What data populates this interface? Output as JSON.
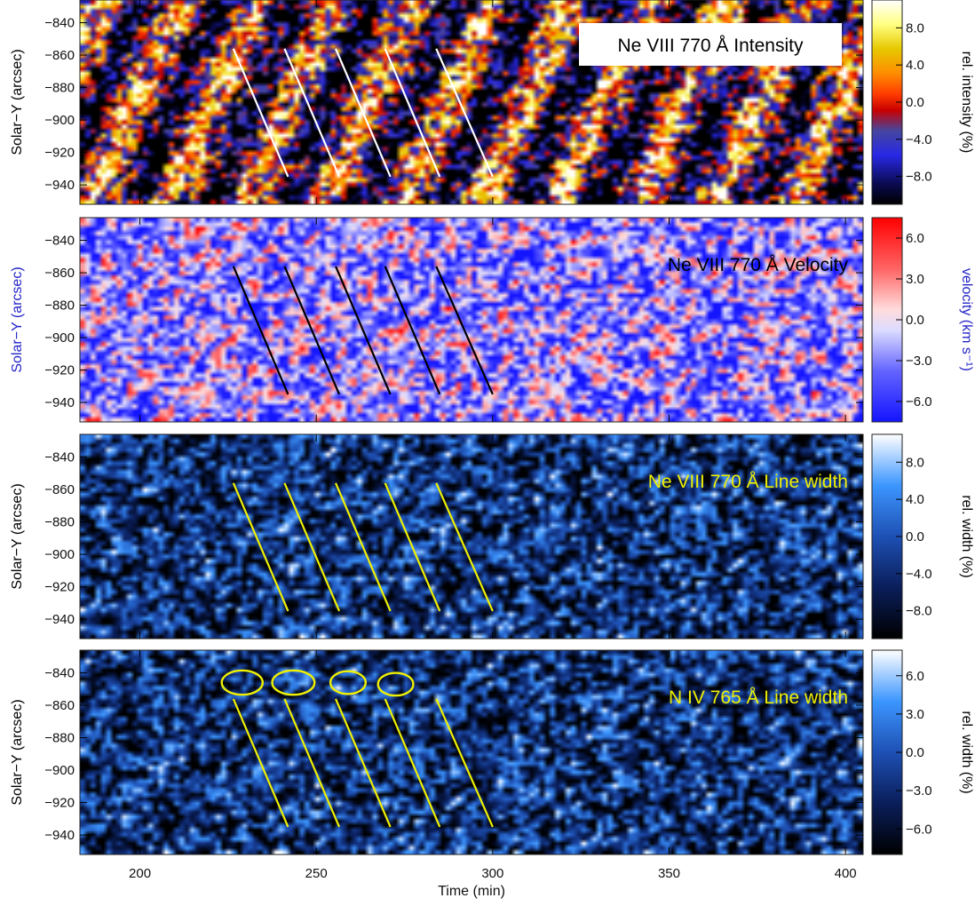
{
  "chart_data": [
    {
      "type": "heatmap",
      "title": "Ne VIII 770 Å Intensity",
      "title_style": "boxed",
      "title_color": "#000000",
      "ylabel": "Solar−Y (arcsec)",
      "ylabel_color": "#000000",
      "xlim": [
        183,
        405
      ],
      "ylim": [
        -952,
        -826
      ],
      "yticks": [
        -840,
        -860,
        -880,
        -900,
        -920,
        -940
      ],
      "colormap": "yellow-orange-red-blue-black",
      "colorbar": {
        "label": "rel. intensity (%)",
        "label_color": "#000000",
        "ticks": [
          8.0,
          4.0,
          0.0,
          -4.0,
          -8.0
        ],
        "range": [
          -11,
          11
        ]
      },
      "line_color": "#ffffff",
      "lines": [
        {
          "x": [
            226.5,
            242.0
          ],
          "y": [
            -856,
            -935
          ]
        },
        {
          "x": [
            241.0,
            256.5
          ],
          "y": [
            -856,
            -935
          ]
        },
        {
          "x": [
            255.5,
            271.0
          ],
          "y": [
            -856,
            -935
          ]
        },
        {
          "x": [
            269.5,
            285.0
          ],
          "y": [
            -856,
            -935
          ]
        },
        {
          "x": [
            284.0,
            300.0
          ],
          "y": [
            -856,
            -935
          ]
        }
      ],
      "circles": []
    },
    {
      "type": "heatmap",
      "title": "Ne VIII 770 Å Velocity",
      "title_style": "plain",
      "title_color": "#000000",
      "ylabel": "Solar−Y (arcsec)",
      "ylabel_color": "#2424c8",
      "xlim": [
        183,
        405
      ],
      "ylim": [
        -952,
        -826
      ],
      "yticks": [
        -840,
        -860,
        -880,
        -900,
        -920,
        -940
      ],
      "colormap": "blue-white-red",
      "colorbar": {
        "label": "velocity (km s⁻¹)",
        "label_color": "#2424c8",
        "ticks": [
          6.0,
          3.0,
          0.0,
          -3.0,
          -6.0
        ],
        "range": [
          -7.5,
          7.5
        ]
      },
      "line_color": "#000000",
      "lines": [
        {
          "x": [
            226.5,
            242.0
          ],
          "y": [
            -856,
            -935
          ]
        },
        {
          "x": [
            241.0,
            256.5
          ],
          "y": [
            -856,
            -935
          ]
        },
        {
          "x": [
            255.5,
            271.0
          ],
          "y": [
            -856,
            -935
          ]
        },
        {
          "x": [
            269.5,
            285.0
          ],
          "y": [
            -856,
            -935
          ]
        },
        {
          "x": [
            284.0,
            300.0
          ],
          "y": [
            -856,
            -935
          ]
        }
      ],
      "circles": []
    },
    {
      "type": "heatmap",
      "title": "Ne VIII 770 Å Line width",
      "title_style": "plain",
      "title_color": "#f0f000",
      "ylabel": "Solar−Y (arcsec)",
      "ylabel_color": "#000000",
      "xlim": [
        183,
        405
      ],
      "ylim": [
        -952,
        -826
      ],
      "yticks": [
        -840,
        -860,
        -880,
        -900,
        -920,
        -940
      ],
      "colormap": "black-blue-white",
      "colorbar": {
        "label": "rel. width (%)",
        "label_color": "#000000",
        "ticks": [
          8.0,
          4.0,
          0.0,
          -4.0,
          -8.0
        ],
        "range": [
          -11,
          11
        ]
      },
      "line_color": "#f0f000",
      "lines": [
        {
          "x": [
            226.5,
            242.0
          ],
          "y": [
            -856,
            -935
          ]
        },
        {
          "x": [
            241.0,
            256.5
          ],
          "y": [
            -856,
            -935
          ]
        },
        {
          "x": [
            255.5,
            271.0
          ],
          "y": [
            -856,
            -935
          ]
        },
        {
          "x": [
            269.5,
            285.0
          ],
          "y": [
            -856,
            -935
          ]
        },
        {
          "x": [
            284.0,
            300.0
          ],
          "y": [
            -856,
            -935
          ]
        }
      ],
      "circles": []
    },
    {
      "type": "heatmap",
      "title": "N IV 765 Å Line width",
      "title_style": "plain",
      "title_color": "#f0f000",
      "ylabel": "Solar−Y (arcsec)",
      "ylabel_color": "#000000",
      "xlabel": "Time (min)",
      "xlim": [
        183,
        405
      ],
      "ylim": [
        -952,
        -826
      ],
      "xticks": [
        200,
        250,
        300,
        350,
        400
      ],
      "yticks": [
        -840,
        -860,
        -880,
        -900,
        -920,
        -940
      ],
      "colormap": "black-blue-white",
      "colorbar": {
        "label": "rel. width (%)",
        "label_color": "#000000",
        "ticks": [
          6.0,
          3.0,
          0.0,
          -3.0,
          -6.0
        ],
        "range": [
          -8,
          8
        ]
      },
      "line_color": "#f0f000",
      "lines": [
        {
          "x": [
            226.5,
            242.0
          ],
          "y": [
            -856,
            -935
          ]
        },
        {
          "x": [
            241.0,
            256.5
          ],
          "y": [
            -856,
            -935
          ]
        },
        {
          "x": [
            255.5,
            271.0
          ],
          "y": [
            -856,
            -935
          ]
        },
        {
          "x": [
            269.5,
            285.0
          ],
          "y": [
            -856,
            -935
          ]
        },
        {
          "x": [
            284.0,
            300.0
          ],
          "y": [
            -856,
            -935
          ]
        }
      ],
      "circles": [
        {
          "x": 229.0,
          "y": -846,
          "rx": 5.8,
          "ry": 7.5
        },
        {
          "x": 243.5,
          "y": -846,
          "rx": 6.0,
          "ry": 7.5
        },
        {
          "x": 259.0,
          "y": -846,
          "rx": 5.0,
          "ry": 7.0
        },
        {
          "x": 272.5,
          "y": -847,
          "rx": 5.0,
          "ry": 7.0
        }
      ]
    }
  ]
}
